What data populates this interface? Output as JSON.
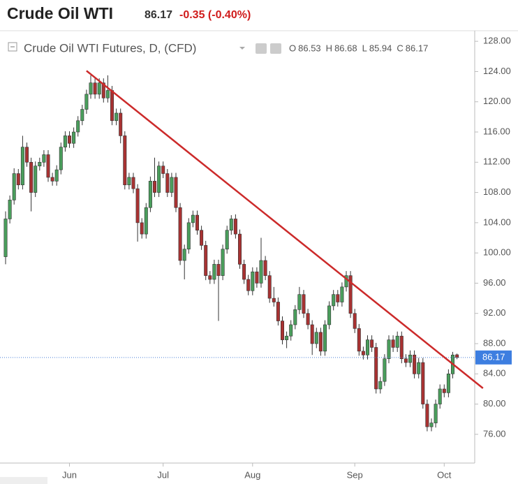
{
  "header": {
    "title": "Crude Oil WTI",
    "price": "86.17",
    "change": "-0.35 (-0.40%)"
  },
  "chart_data": {
    "type": "candlestick",
    "legend": {
      "name": "Crude Oil WTI Futures, D, (CFD)",
      "ohlc": [
        {
          "label": "O",
          "value": 86.53
        },
        {
          "label": "H",
          "value": 86.68
        },
        {
          "label": "L",
          "value": 85.94
        },
        {
          "label": "C",
          "value": 86.17
        }
      ]
    },
    "up_color": "#4a9e5c",
    "down_color": "#a83232",
    "categories": [
      null,
      null,
      null,
      null,
      null,
      null,
      null,
      null,
      null,
      null,
      null,
      null,
      null,
      null,
      null,
      "Jun",
      null,
      null,
      null,
      null,
      null,
      null,
      null,
      null,
      null,
      null,
      null,
      null,
      null,
      null,
      null,
      null,
      null,
      null,
      null,
      null,
      null,
      "Jul",
      null,
      null,
      null,
      null,
      null,
      null,
      null,
      null,
      null,
      null,
      null,
      null,
      null,
      null,
      null,
      null,
      null,
      null,
      null,
      null,
      "Aug",
      null,
      null,
      null,
      null,
      null,
      null,
      null,
      null,
      null,
      null,
      null,
      null,
      null,
      null,
      null,
      null,
      null,
      null,
      null,
      null,
      null,
      null,
      null,
      "Sep",
      null,
      null,
      null,
      null,
      null,
      null,
      null,
      null,
      null,
      null,
      null,
      null,
      null,
      null,
      null,
      null,
      null,
      null,
      null,
      null,
      "Oct",
      null,
      null,
      null
    ],
    "ohlc": [
      [
        99.5,
        105.5,
        98.5,
        104.5
      ],
      [
        104.5,
        107.6,
        103.9,
        107
      ],
      [
        107,
        111.2,
        106.4,
        110.5
      ],
      [
        110.5,
        111.1,
        108.4,
        109
      ],
      [
        109,
        115.5,
        108.4,
        114
      ],
      [
        114,
        114.6,
        111.4,
        112
      ],
      [
        112,
        112.6,
        105.5,
        108
      ],
      [
        108,
        112.1,
        107.4,
        111.5
      ],
      [
        111.5,
        112.6,
        110.9,
        112
      ],
      [
        112,
        113.6,
        111.4,
        113
      ],
      [
        113,
        113.6,
        109.4,
        110
      ],
      [
        110,
        110.6,
        108.9,
        109.5
      ],
      [
        109.5,
        111.6,
        108.9,
        111
      ],
      [
        111,
        114.6,
        110.4,
        114
      ],
      [
        114,
        116.1,
        113.4,
        115.5
      ],
      [
        115.5,
        116.1,
        113.9,
        114.5
      ],
      [
        114.5,
        116.6,
        113.9,
        116
      ],
      [
        116,
        118.1,
        115.4,
        117.5
      ],
      [
        117.5,
        119.6,
        116.9,
        119
      ],
      [
        119,
        121.6,
        118.4,
        121
      ],
      [
        121,
        123.5,
        120.4,
        122.5
      ],
      [
        122.5,
        123.1,
        120.4,
        121
      ],
      [
        121,
        123.1,
        120.4,
        122.5
      ],
      [
        122.5,
        123.1,
        119.9,
        120.5
      ],
      [
        120.5,
        123.5,
        119.9,
        121.5
      ],
      [
        121.5,
        122.1,
        116.9,
        117.5
      ],
      [
        117.5,
        119.1,
        116.9,
        118.5
      ],
      [
        118.5,
        119.1,
        114.5,
        115.5
      ],
      [
        115.5,
        116.1,
        108.4,
        109
      ],
      [
        109,
        110.6,
        108.4,
        110
      ],
      [
        110,
        110.6,
        107.9,
        108.5
      ],
      [
        108.5,
        109.1,
        101.5,
        104
      ],
      [
        104,
        104.6,
        101.9,
        102.5
      ],
      [
        102.5,
        106.6,
        101.9,
        106
      ],
      [
        106,
        110.1,
        105.4,
        109.5
      ],
      [
        109.5,
        112.6,
        107.4,
        108
      ],
      [
        108,
        112.1,
        107.4,
        111.5
      ],
      [
        111.5,
        112.1,
        109.9,
        110.5
      ],
      [
        110.5,
        111.1,
        107.4,
        108
      ],
      [
        108,
        110.6,
        107.4,
        110
      ],
      [
        110,
        110.6,
        105.4,
        106
      ],
      [
        106,
        106.6,
        98.4,
        99
      ],
      [
        99,
        101.1,
        96.5,
        100.5
      ],
      [
        100.5,
        104.6,
        99.9,
        104
      ],
      [
        104,
        105.6,
        103.4,
        105
      ],
      [
        105,
        105.6,
        102.4,
        103
      ],
      [
        103,
        103.6,
        100.4,
        101
      ],
      [
        101,
        101.6,
        96.4,
        97
      ],
      [
        97,
        97.6,
        95.9,
        96.5
      ],
      [
        96.5,
        99.1,
        95.9,
        98.5
      ],
      [
        98.5,
        99.1,
        91,
        97
      ],
      [
        97,
        101.1,
        96.4,
        100.5
      ],
      [
        100.5,
        103.6,
        99.9,
        103
      ],
      [
        103,
        105,
        102.4,
        104.5
      ],
      [
        104.5,
        105.1,
        101.9,
        102.5
      ],
      [
        102.5,
        103.1,
        97.9,
        98.5
      ],
      [
        98.5,
        99.1,
        95.9,
        96.5
      ],
      [
        96.5,
        97.1,
        94.4,
        95
      ],
      [
        95,
        98.1,
        94.4,
        97.5
      ],
      [
        97.5,
        98.1,
        95.4,
        96
      ],
      [
        96,
        102,
        95.4,
        99
      ],
      [
        99,
        99.6,
        96.4,
        97
      ],
      [
        97,
        97.6,
        93.4,
        94
      ],
      [
        94,
        95.5,
        92.9,
        93.5
      ],
      [
        93.5,
        94.1,
        90.4,
        91
      ],
      [
        91,
        91.6,
        87.9,
        88.5
      ],
      [
        88.5,
        89.6,
        87.4,
        89
      ],
      [
        89,
        91.1,
        88.4,
        90.5
      ],
      [
        90.5,
        93.1,
        89.9,
        92.5
      ],
      [
        92.5,
        95.5,
        91.9,
        94.5
      ],
      [
        94.5,
        95.1,
        91.4,
        92
      ],
      [
        92,
        92.6,
        89.9,
        90.5
      ],
      [
        90.5,
        91.1,
        86.5,
        88
      ],
      [
        88,
        90.1,
        87.4,
        89.5
      ],
      [
        89.5,
        90.1,
        86.4,
        87
      ],
      [
        87,
        91.1,
        86.4,
        90.5
      ],
      [
        90.5,
        93.6,
        89.9,
        93
      ],
      [
        93,
        95.1,
        92.4,
        94.5
      ],
      [
        94.5,
        95.1,
        92.9,
        93.5
      ],
      [
        93.5,
        96.1,
        92.9,
        95.5
      ],
      [
        95.5,
        97.6,
        94.9,
        97
      ],
      [
        97,
        97.6,
        91.4,
        92
      ],
      [
        92,
        92.6,
        89.4,
        90
      ],
      [
        90,
        90.6,
        86.4,
        87
      ],
      [
        87,
        87.6,
        85.9,
        86.5
      ],
      [
        86.5,
        89.1,
        85.9,
        88.5
      ],
      [
        88.5,
        89.1,
        86.9,
        87.5
      ],
      [
        87.5,
        88.1,
        81.4,
        82
      ],
      [
        82,
        83.6,
        81.4,
        83
      ],
      [
        83,
        86.6,
        82.4,
        86
      ],
      [
        86,
        89.1,
        85.4,
        88.5
      ],
      [
        88.5,
        89.1,
        86.9,
        87.5
      ],
      [
        87.5,
        89.6,
        86.9,
        89
      ],
      [
        89,
        89.6,
        85.4,
        86
      ],
      [
        86,
        86.6,
        84.9,
        85.5
      ],
      [
        85.5,
        87.1,
        84.9,
        86.5
      ],
      [
        86.5,
        87.1,
        83.4,
        84
      ],
      [
        84,
        86.1,
        83.4,
        85.5
      ],
      [
        85.5,
        86.1,
        79.4,
        80
      ],
      [
        80,
        80.6,
        76.4,
        77
      ],
      [
        77,
        78.1,
        76.4,
        77.5
      ],
      [
        77.5,
        80.6,
        76.9,
        80
      ],
      [
        80,
        82.6,
        79.4,
        82
      ],
      [
        82,
        82.6,
        80.9,
        81.5
      ],
      [
        81.5,
        84.6,
        80.9,
        84
      ],
      [
        84,
        86.9,
        83.4,
        86.5
      ],
      [
        86.53,
        86.68,
        85.94,
        86.17
      ]
    ],
    "ylim": [
      72.2,
      129.4
    ],
    "yticks": [
      {
        "value": 128,
        "label": "128.00"
      },
      {
        "value": 124,
        "label": "124.00"
      },
      {
        "value": 120,
        "label": "120.00"
      },
      {
        "value": 116,
        "label": "116.00"
      },
      {
        "value": 112,
        "label": "112.00"
      },
      {
        "value": 108,
        "label": "108.00"
      },
      {
        "value": 104,
        "label": "104.00"
      },
      {
        "value": 100,
        "label": "100.00"
      },
      {
        "value": 96,
        "label": "96.00"
      },
      {
        "value": 92,
        "label": "92.00"
      },
      {
        "value": 88,
        "label": "88.00"
      },
      {
        "value": 84,
        "label": "84.00"
      },
      {
        "value": 80,
        "label": "80.00"
      },
      {
        "value": 76,
        "label": "76.00"
      }
    ],
    "last_price": 86.17,
    "trendline": {
      "color": "#cc2a2a",
      "points": [
        [
          19,
          124.1
        ],
        [
          112.1,
          82.1
        ]
      ]
    }
  }
}
